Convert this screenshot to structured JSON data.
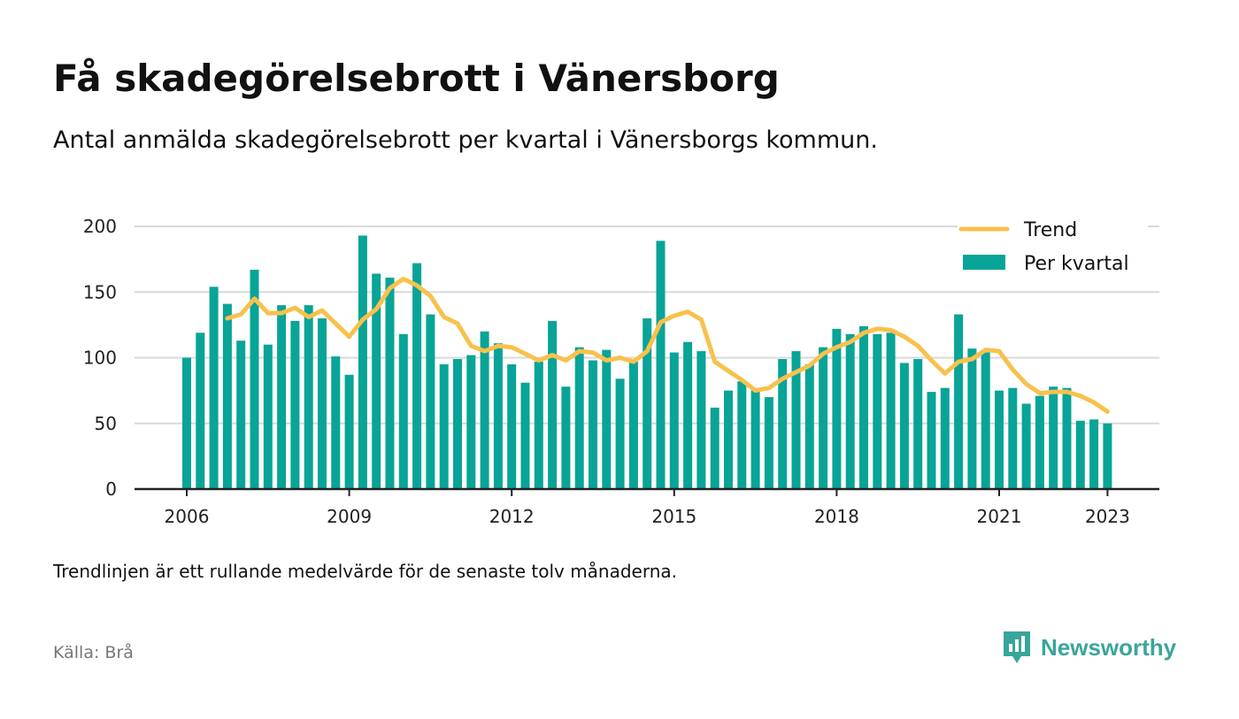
{
  "header": {
    "title": "Få skadegörelsebrott i Vänersborg",
    "subtitle": "Antal anmälda skadegörelsebrott per kvartal i Vänersborgs kommun."
  },
  "footer": {
    "note": "Trendlinjen är ett rullande medelvärde för de senaste tolv månaderna.",
    "source": "Källa: Brå",
    "brand": "Newsworthy"
  },
  "colors": {
    "bar": "#08a497",
    "trend": "#f8c14d",
    "grid": "#d9d9d9",
    "brand": "#3aa59a"
  },
  "chart_data": {
    "type": "bar",
    "title": "Få skadegörelsebrott i Vänersborg",
    "ylim": [
      0,
      200
    ],
    "yticks": [
      0,
      50,
      100,
      150,
      200
    ],
    "ytick_labels": [
      "0",
      "50",
      "100",
      "150",
      "200"
    ],
    "xticks": [
      "2006",
      "2009",
      "2012",
      "2015",
      "2018",
      "2021",
      "2023"
    ],
    "grid": true,
    "legend_position": "top-right",
    "legend": [
      "Trend",
      "Per kvartal"
    ],
    "start_year": 2006,
    "series": [
      {
        "name": "Per kvartal",
        "type": "bar",
        "values": [
          100,
          119,
          154,
          141,
          113,
          167,
          110,
          140,
          128,
          140,
          130,
          101,
          87,
          193,
          164,
          161,
          118,
          172,
          133,
          95,
          99,
          102,
          120,
          111,
          95,
          81,
          97,
          128,
          78,
          108,
          98,
          106,
          84,
          97,
          130,
          189,
          104,
          112,
          105,
          62,
          75,
          82,
          75,
          70,
          99,
          105,
          95,
          108,
          122,
          118,
          124,
          118,
          119,
          96,
          99,
          74,
          77,
          133,
          107,
          104,
          75,
          77,
          65,
          71,
          78,
          77,
          52,
          53,
          50
        ]
      },
      {
        "name": "Trend",
        "type": "line",
        "values": [
          null,
          null,
          null,
          130,
          133,
          145,
          134,
          134,
          138,
          131,
          136,
          126,
          116,
          129,
          137,
          153,
          160,
          155,
          147,
          131,
          126,
          109,
          105,
          109,
          108,
          103,
          98,
          102,
          98,
          105,
          104,
          98,
          100,
          97,
          105,
          127,
          132,
          135,
          129,
          97,
          90,
          83,
          75,
          77,
          84,
          89,
          94,
          103,
          108,
          112,
          119,
          122,
          121,
          116,
          109,
          98,
          88,
          97,
          99,
          106,
          105,
          91,
          80,
          73,
          74,
          74,
          71,
          66,
          59
        ]
      }
    ]
  }
}
